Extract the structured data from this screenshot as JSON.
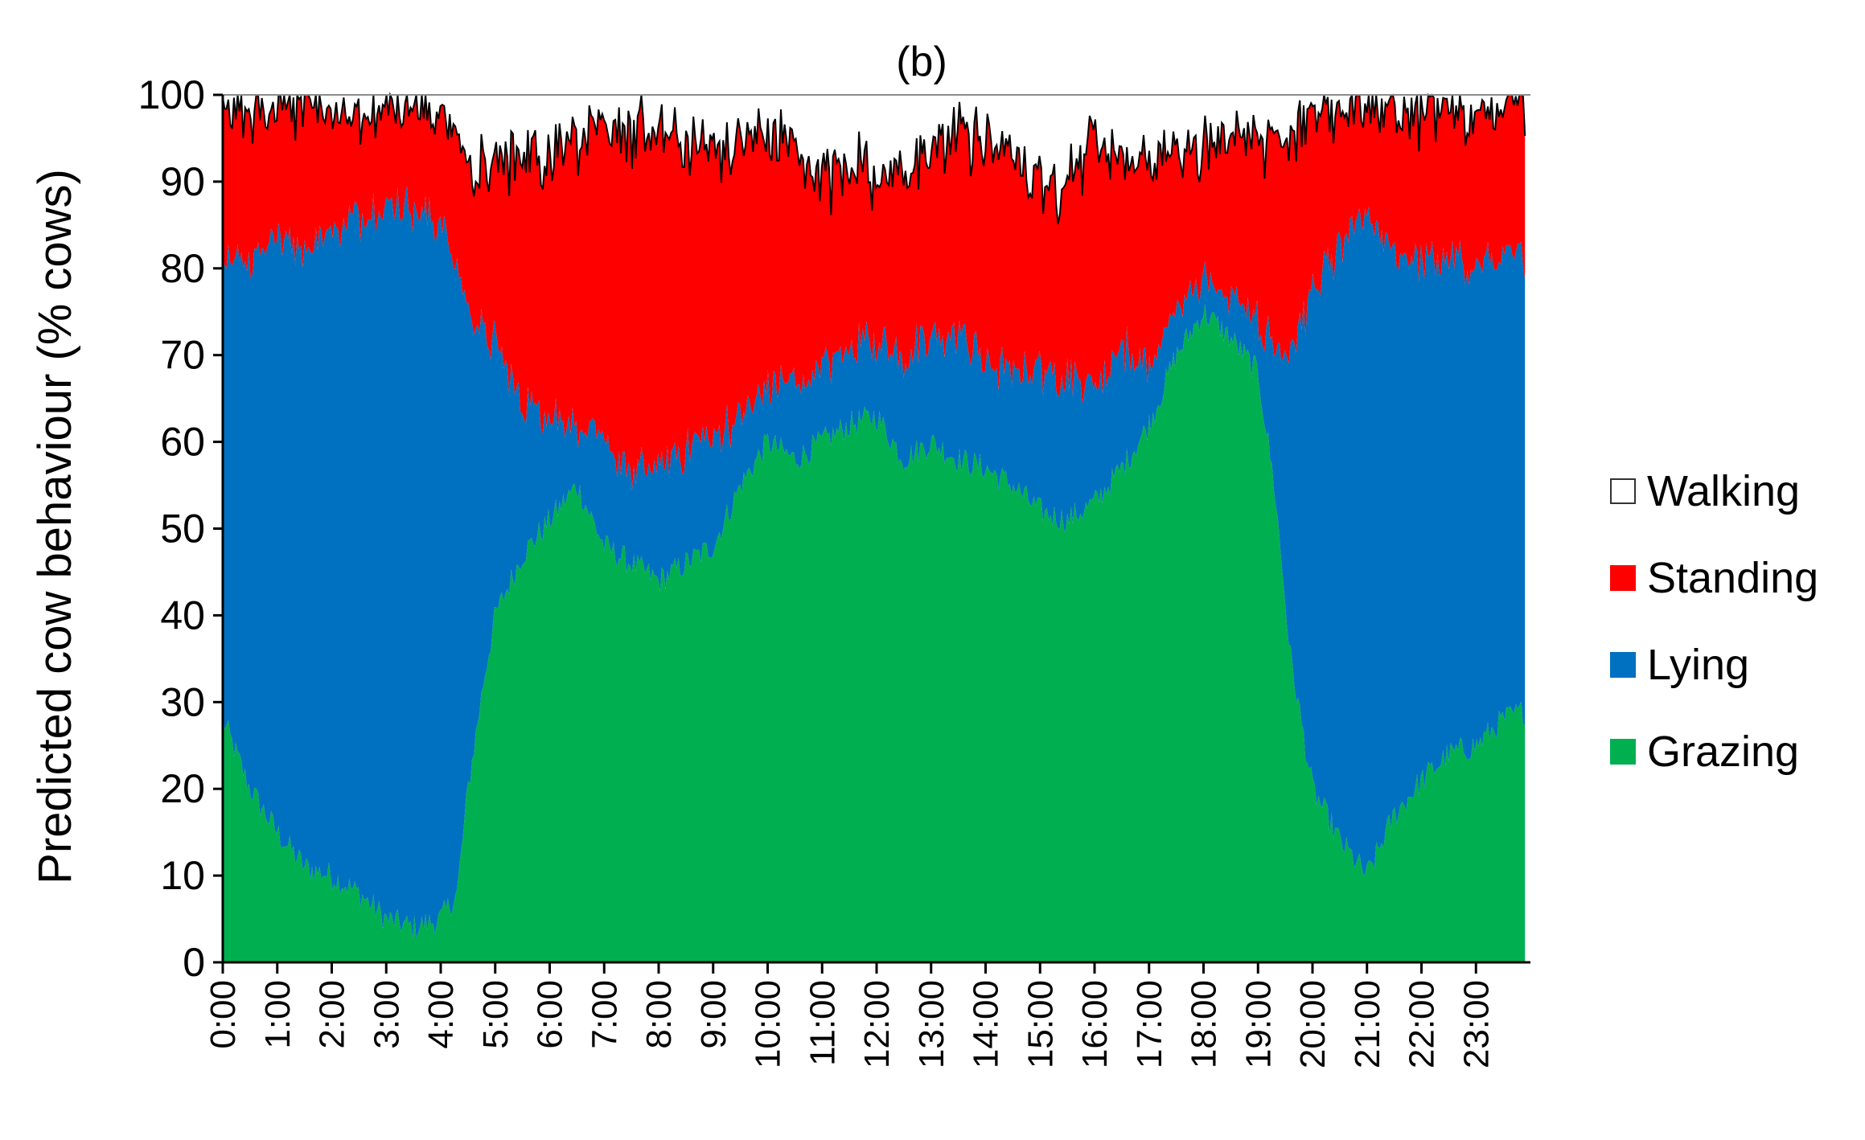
{
  "chart_data": {
    "type": "area",
    "stacked": true,
    "title": "(b)",
    "xlabel": "",
    "ylabel": "Predicted cow behaviour (% cows)",
    "ylim": [
      0,
      100
    ],
    "yticks": [
      0,
      10,
      20,
      30,
      40,
      50,
      60,
      70,
      80,
      90,
      100
    ],
    "xlim": [
      0,
      24
    ],
    "x_tick_labels": [
      "0:00",
      "1:00",
      "2:00",
      "3:00",
      "4:00",
      "5:00",
      "6:00",
      "7:00",
      "8:00",
      "9:00",
      "10:00",
      "11:00",
      "12:00",
      "13:00",
      "14:00",
      "15:00",
      "16:00",
      "17:00",
      "18:00",
      "19:00",
      "20:00",
      "21:00",
      "22:00",
      "23:00"
    ],
    "x": [
      0,
      0.5,
      1,
      1.5,
      2,
      2.5,
      3,
      3.5,
      4,
      4.3,
      4.5,
      4.8,
      5,
      5.5,
      6,
      6.5,
      7,
      7.5,
      8,
      8.5,
      9,
      9.5,
      10,
      10.5,
      11,
      11.5,
      12,
      12.5,
      13,
      13.5,
      14,
      14.5,
      15,
      15.5,
      16,
      16.5,
      17,
      17.5,
      18,
      18.5,
      19,
      19.3,
      19.6,
      20,
      20.5,
      21,
      21.5,
      22,
      22.5,
      23,
      23.5,
      23.9
    ],
    "grid": false,
    "legend_position": "right",
    "series": [
      {
        "name": "Grazing",
        "color": "#00b050",
        "values": [
          28,
          20,
          15,
          11,
          10,
          8,
          5,
          4,
          5,
          8,
          20,
          33,
          40,
          47,
          51,
          55,
          48,
          46,
          44,
          46,
          48,
          55,
          60,
          58,
          60,
          62,
          63,
          58,
          60,
          58,
          57,
          55,
          52,
          51,
          53,
          57,
          62,
          70,
          75,
          72,
          68,
          55,
          35,
          20,
          14,
          10,
          17,
          21,
          24,
          25,
          28,
          29
        ]
      },
      {
        "name": "Lying",
        "color": "#0070c0",
        "values": [
          53,
          61,
          69,
          71,
          75,
          78,
          82,
          83,
          80,
          72,
          55,
          40,
          31,
          18,
          12,
          7,
          12,
          10,
          13,
          13,
          13,
          8,
          6,
          9,
          8,
          9,
          9,
          12,
          12,
          15,
          12,
          13,
          16,
          17,
          13,
          14,
          7,
          5,
          4,
          5,
          6,
          16,
          36,
          57,
          68,
          76,
          65,
          60,
          57,
          55,
          53,
          52
        ]
      },
      {
        "name": "Standing",
        "color": "#ff0000",
        "values": [
          17,
          17,
          15,
          17,
          13,
          12,
          12,
          12,
          13,
          15,
          17,
          19,
          21,
          29,
          30,
          33,
          36,
          39,
          39,
          35,
          34,
          31,
          29,
          27,
          22,
          21,
          19,
          22,
          22,
          23,
          25,
          25,
          21,
          22,
          29,
          22,
          24,
          18,
          15,
          19,
          21,
          24,
          24,
          21,
          16,
          13,
          16,
          17,
          17,
          18,
          17,
          18
        ]
      },
      {
        "name": "Walking",
        "color": "#ffffff",
        "values": [
          2,
          2,
          1,
          1,
          2,
          2,
          1,
          1,
          2,
          5,
          8,
          8,
          8,
          6,
          7,
          5,
          4,
          5,
          4,
          6,
          5,
          6,
          5,
          6,
          10,
          8,
          9,
          8,
          6,
          4,
          6,
          7,
          11,
          10,
          5,
          7,
          7,
          7,
          6,
          4,
          5,
          5,
          5,
          2,
          2,
          1,
          2,
          2,
          2,
          2,
          2,
          1
        ]
      }
    ]
  }
}
